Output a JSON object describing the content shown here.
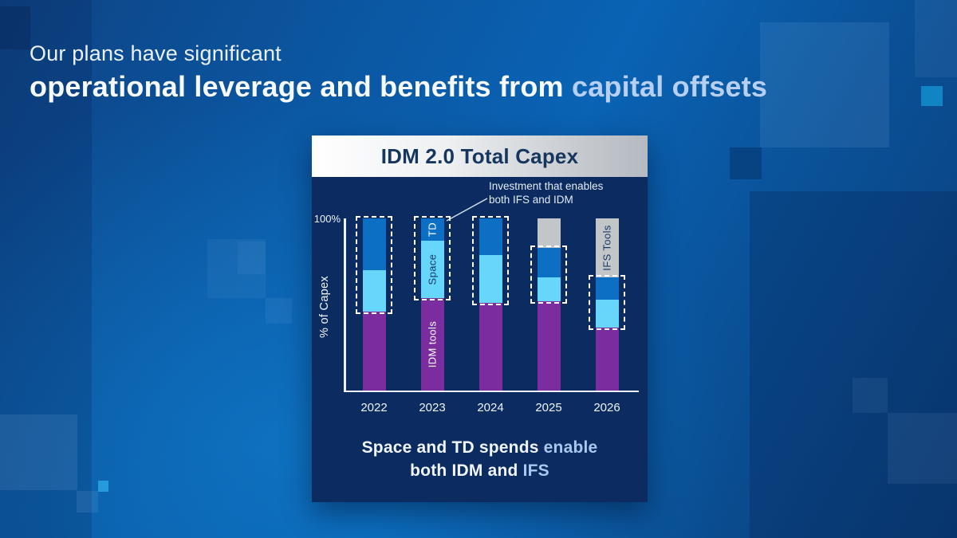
{
  "slide": {
    "title_line1": "Our plans have significant",
    "title_line2_main": "operational leverage and benefits from ",
    "title_line2_accent": "capital offsets"
  },
  "panel": {
    "header": "IDM 2.0 Total Capex",
    "annotation_line1": "Investment that enables",
    "annotation_line2": "both IFS and IDM",
    "caption_line1_main": "Space and TD spends ",
    "caption_line1_accent": "enable",
    "caption_line2_main": "both IDM and ",
    "caption_line2_accent": "IFS"
  },
  "chart_data": {
    "type": "bar",
    "stacked": true,
    "title": "IDM 2.0 Total Capex",
    "ylabel": "% of Capex",
    "ytick_label": "100%",
    "ylim": [
      0,
      100
    ],
    "grid": false,
    "legend": "none",
    "categories": [
      "2022",
      "2023",
      "2024",
      "2025",
      "2026"
    ],
    "series": [
      {
        "name": "IDM tools",
        "color": "#7b2da0",
        "values": [
          46,
          54,
          51,
          52,
          37
        ]
      },
      {
        "name": "Space",
        "color": "#66d6fb",
        "values": [
          24,
          33,
          28,
          14,
          16
        ]
      },
      {
        "name": "TD",
        "color": "#0d6fc3",
        "values": [
          30,
          13,
          21,
          17,
          13
        ]
      },
      {
        "name": "IFS Tools",
        "color": "#c3c6c9",
        "values": [
          0,
          0,
          0,
          17,
          34
        ]
      }
    ],
    "highlight_boxes": {
      "from_series": "Space",
      "to_series": "TD",
      "style": "dashed-white",
      "applies_to": [
        "2022",
        "2023",
        "2024",
        "2025",
        "2026"
      ]
    },
    "segment_labels": [
      {
        "category": "2023",
        "series": "TD",
        "text_color": "#ffffff"
      },
      {
        "category": "2023",
        "series": "Space",
        "text_color": "#173a66"
      },
      {
        "category": "2023",
        "series": "IDM tools",
        "text_color": "#ffffff"
      },
      {
        "category": "2026",
        "series": "IFS Tools",
        "text_color": "#173a66"
      }
    ],
    "colors": {
      "panel_background": "#0c2b60",
      "axis": "#eef2f7",
      "highlight_dash": "#ffffff"
    }
  }
}
